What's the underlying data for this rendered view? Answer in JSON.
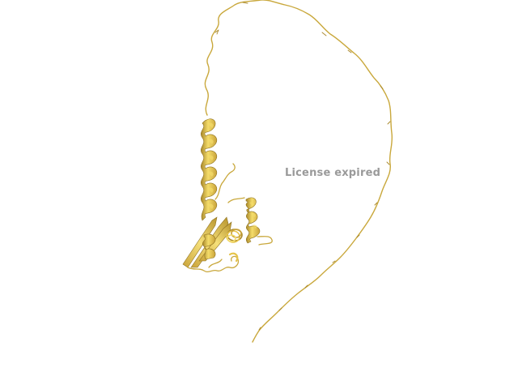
{
  "watermark": {
    "text": "License expired",
    "color": "#9a9a9a"
  },
  "colors": {
    "background": "#ffffff",
    "ribbon_light": "#f4dc6a",
    "ribbon_mid": "#e6c44a",
    "ribbon_dark": "#a8872a",
    "coil": "#c9a83c"
  },
  "scene": {
    "type": "protein cartoon render",
    "representation": "cartoon"
  }
}
